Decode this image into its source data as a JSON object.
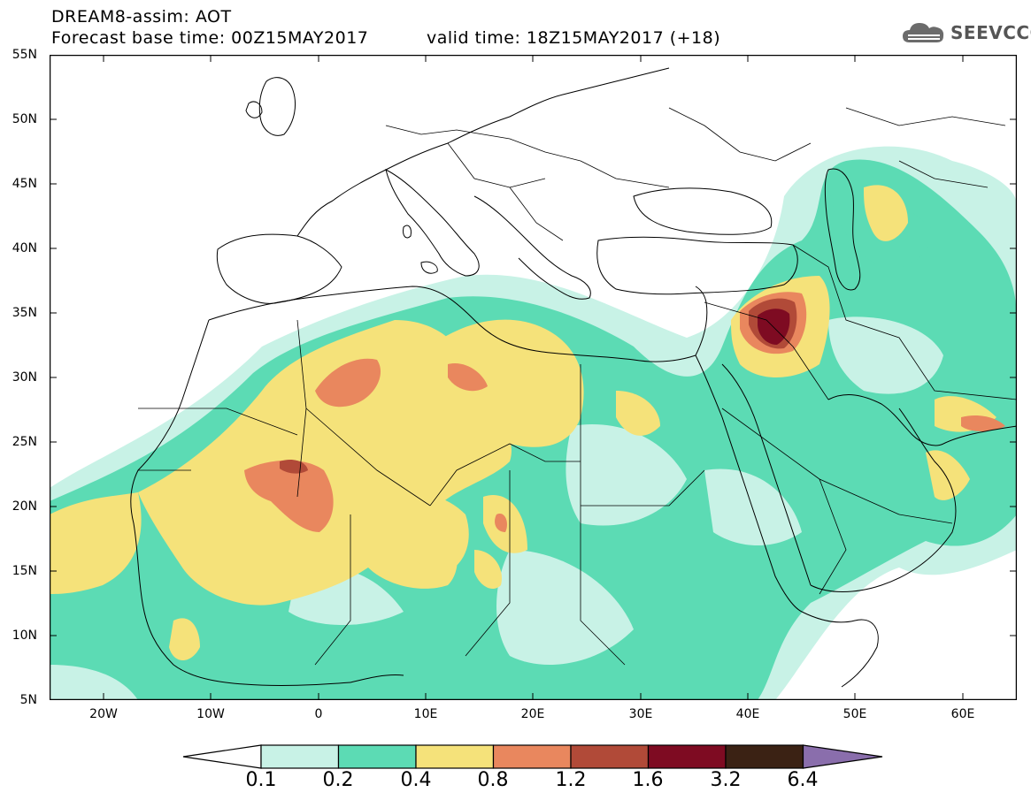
{
  "header": {
    "title_line1": "DREAM8-assim: AOT",
    "title_line2": "Forecast base time: 00Z15MAY2017",
    "valid_time": "valid time: 18Z15MAY2017 (+18)",
    "logo_text": "SEEVCCC"
  },
  "axes": {
    "lat_labels": [
      "55N",
      "50N",
      "45N",
      "40N",
      "35N",
      "30N",
      "25N",
      "20N",
      "15N",
      "10N",
      "5N"
    ],
    "lon_labels": [
      "20W",
      "10W",
      "0",
      "10E",
      "20E",
      "30E",
      "40E",
      "50E",
      "60E"
    ],
    "lat_range": [
      5,
      55
    ],
    "lon_range": [
      -25,
      65
    ]
  },
  "colorbar": {
    "labels": [
      "0.1",
      "0.2",
      "0.4",
      "0.8",
      "1.2",
      "1.6",
      "3.2",
      "6.4"
    ],
    "colors": [
      "#ffffff",
      "#c8f2e6",
      "#5cdbb4",
      "#f5e27a",
      "#e9875e",
      "#b14a38",
      "#7e0b22",
      "#3b2214",
      "#8a6eac"
    ]
  }
}
